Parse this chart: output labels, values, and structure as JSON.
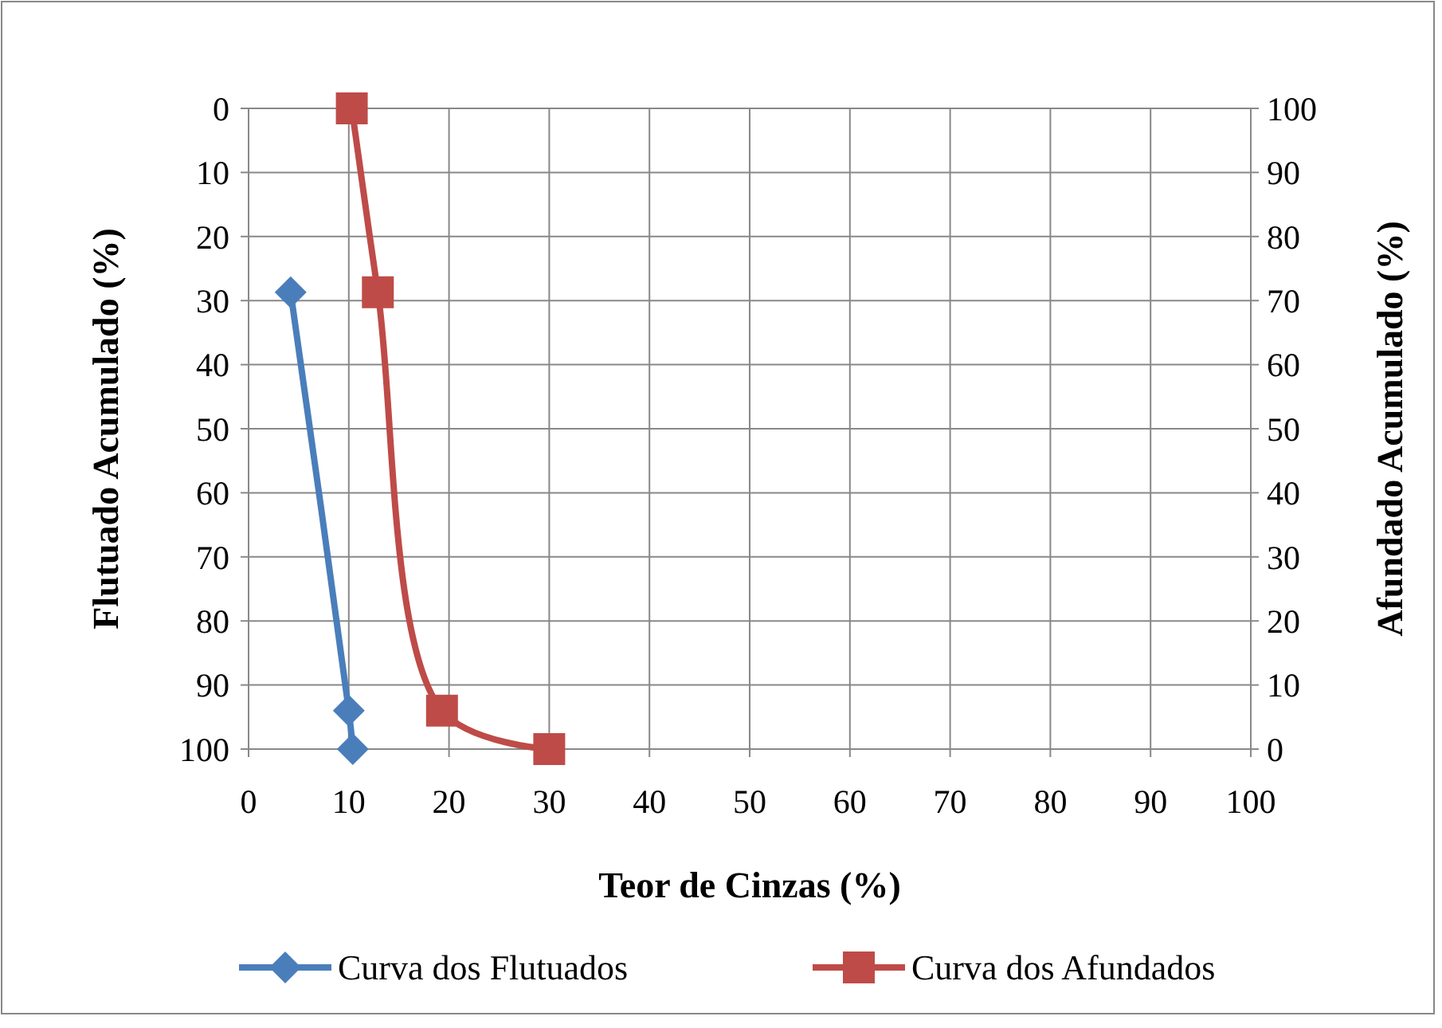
{
  "chart_data": {
    "type": "line",
    "xlabel": "Teor de Cinzas (%)",
    "ylabel": "Flutuado Acumulado (%)",
    "y2label": "Afundado Acumulado (%)",
    "xlim": [
      0,
      100
    ],
    "xticks": [
      0,
      10,
      20,
      30,
      40,
      50,
      60,
      70,
      80,
      90,
      100
    ],
    "ylim": [
      100,
      0
    ],
    "yticks": [
      0,
      10,
      20,
      30,
      40,
      50,
      60,
      70,
      80,
      90,
      100
    ],
    "y2lim": [
      0,
      100
    ],
    "y2ticks": [
      0,
      10,
      20,
      30,
      40,
      50,
      60,
      70,
      80,
      90,
      100
    ],
    "grid": true,
    "legend": "bottom",
    "series": [
      {
        "name": "Curva dos Flutuados",
        "color": "#4a7ebb",
        "marker": "diamond",
        "x": [
          4.2,
          10.0,
          10.4
        ],
        "values": [
          28.7,
          94,
          100
        ]
      },
      {
        "name": "Curva dos Afundados",
        "color": "#be4b48",
        "marker": "square",
        "axis": "y2",
        "x": [
          10.3,
          12.9,
          19.3,
          30.0
        ],
        "values": [
          100,
          71.3,
          6,
          0
        ]
      }
    ]
  }
}
